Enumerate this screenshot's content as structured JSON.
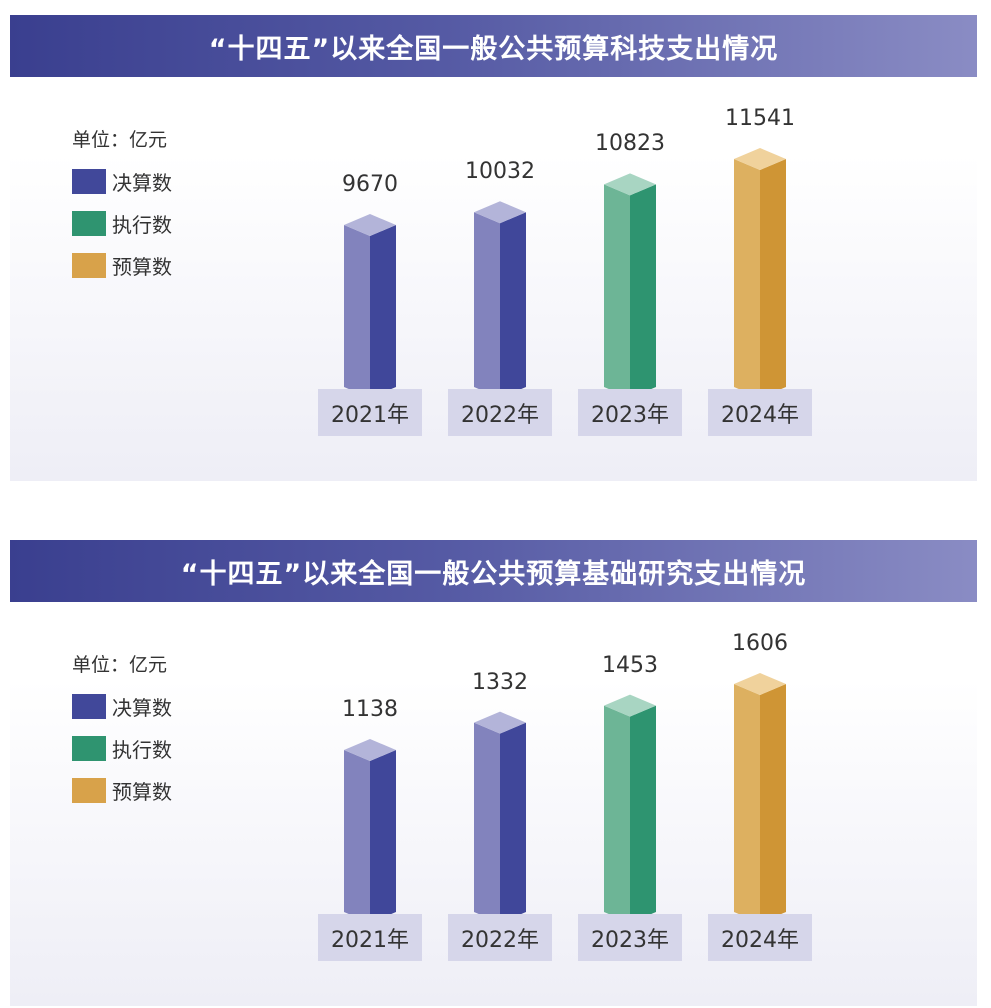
{
  "chart_data": [
    {
      "type": "bar",
      "title": "“十四五”以来全国一般公共预算科技支出情况",
      "unit_label": "单位：亿元",
      "categories": [
        "2021年",
        "2022年",
        "2023年",
        "2024年"
      ],
      "values": [
        9670,
        10032,
        10823,
        11541
      ],
      "value_labels": [
        "9670",
        "10032",
        "10823",
        "11541"
      ],
      "bar_kinds": [
        "决算数",
        "决算数",
        "执行数",
        "预算数"
      ],
      "legend": [
        {
          "label": "决算数",
          "color": "#41489a"
        },
        {
          "label": "执行数",
          "color": "#2f9470"
        },
        {
          "label": "预算数",
          "color": "#d8a24a"
        }
      ]
    },
    {
      "type": "bar",
      "title": "“十四五”以来全国一般公共预算基础研究支出情况",
      "unit_label": "单位：亿元",
      "categories": [
        "2021年",
        "2022年",
        "2023年",
        "2024年"
      ],
      "values": [
        1138,
        1332,
        1453,
        1606
      ],
      "value_labels": [
        "1138",
        "1332",
        "1453",
        "1606"
      ],
      "bar_kinds": [
        "决算数",
        "决算数",
        "执行数",
        "预算数"
      ],
      "legend": [
        {
          "label": "决算数",
          "color": "#41489a"
        },
        {
          "label": "执行数",
          "color": "#2f9470"
        },
        {
          "label": "预算数",
          "color": "#d8a24a"
        }
      ]
    }
  ],
  "bar_colors": {
    "决算数": {
      "front": "#8283bd",
      "side": "#40479a",
      "top": "#b3b4d9"
    },
    "执行数": {
      "front": "#6db596",
      "side": "#2e9470",
      "top": "#a8d5c2"
    },
    "预算数": {
      "front": "#ddb060",
      "side": "#cf9535",
      "top": "#f0d29c"
    }
  }
}
